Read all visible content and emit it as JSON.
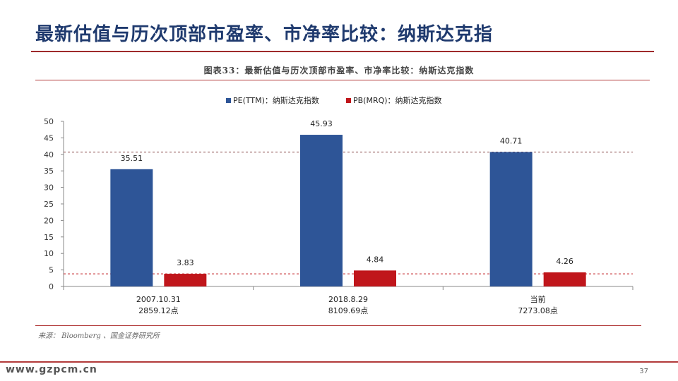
{
  "slide": {
    "title": "最新估值与历次顶部市盈率、市净率比较：纳斯达克指",
    "caption": "图表33：最新估值与历次顶部市盈率、市净率比较：纳斯达克指数",
    "source": "来源： Bloomberg 、国金证券研究所",
    "watermark": "www.gzpcm.cn",
    "page_number": "37"
  },
  "colors": {
    "title": "#1f3a6e",
    "accent_red": "#b23a3a",
    "pe": "#2e5597",
    "pb": "#c0161b"
  },
  "chart_data": {
    "type": "bar",
    "categories": [
      [
        "2007.10.31",
        "2859.12点"
      ],
      [
        "2018.8.29",
        "8109.69点"
      ],
      [
        "当前",
        "7273.08点"
      ]
    ],
    "series": [
      {
        "name": "PE(TTM)：纳斯达克指数",
        "color": "#2e5597",
        "values": [
          35.51,
          45.93,
          40.71
        ]
      },
      {
        "name": "PB(MRQ)：纳斯达克指数",
        "color": "#c0161b",
        "values": [
          3.83,
          4.84,
          4.26
        ]
      }
    ],
    "data_labels": [
      [
        "35.51",
        "45.93",
        "40.71"
      ],
      [
        "3.83",
        "4.84",
        "4.26"
      ]
    ],
    "ylim": [
      0,
      50
    ],
    "yticks": [
      0,
      5,
      10,
      15,
      20,
      25,
      30,
      35,
      40,
      45,
      50
    ],
    "reference_lines": [
      {
        "value": 40.71,
        "color": "#7f3b3b",
        "style": "dashed"
      },
      {
        "value": 3.83,
        "color": "#c0161b",
        "style": "dashed"
      }
    ],
    "legend_position": "top-center",
    "grid": false,
    "xlabel": "",
    "ylabel": ""
  }
}
